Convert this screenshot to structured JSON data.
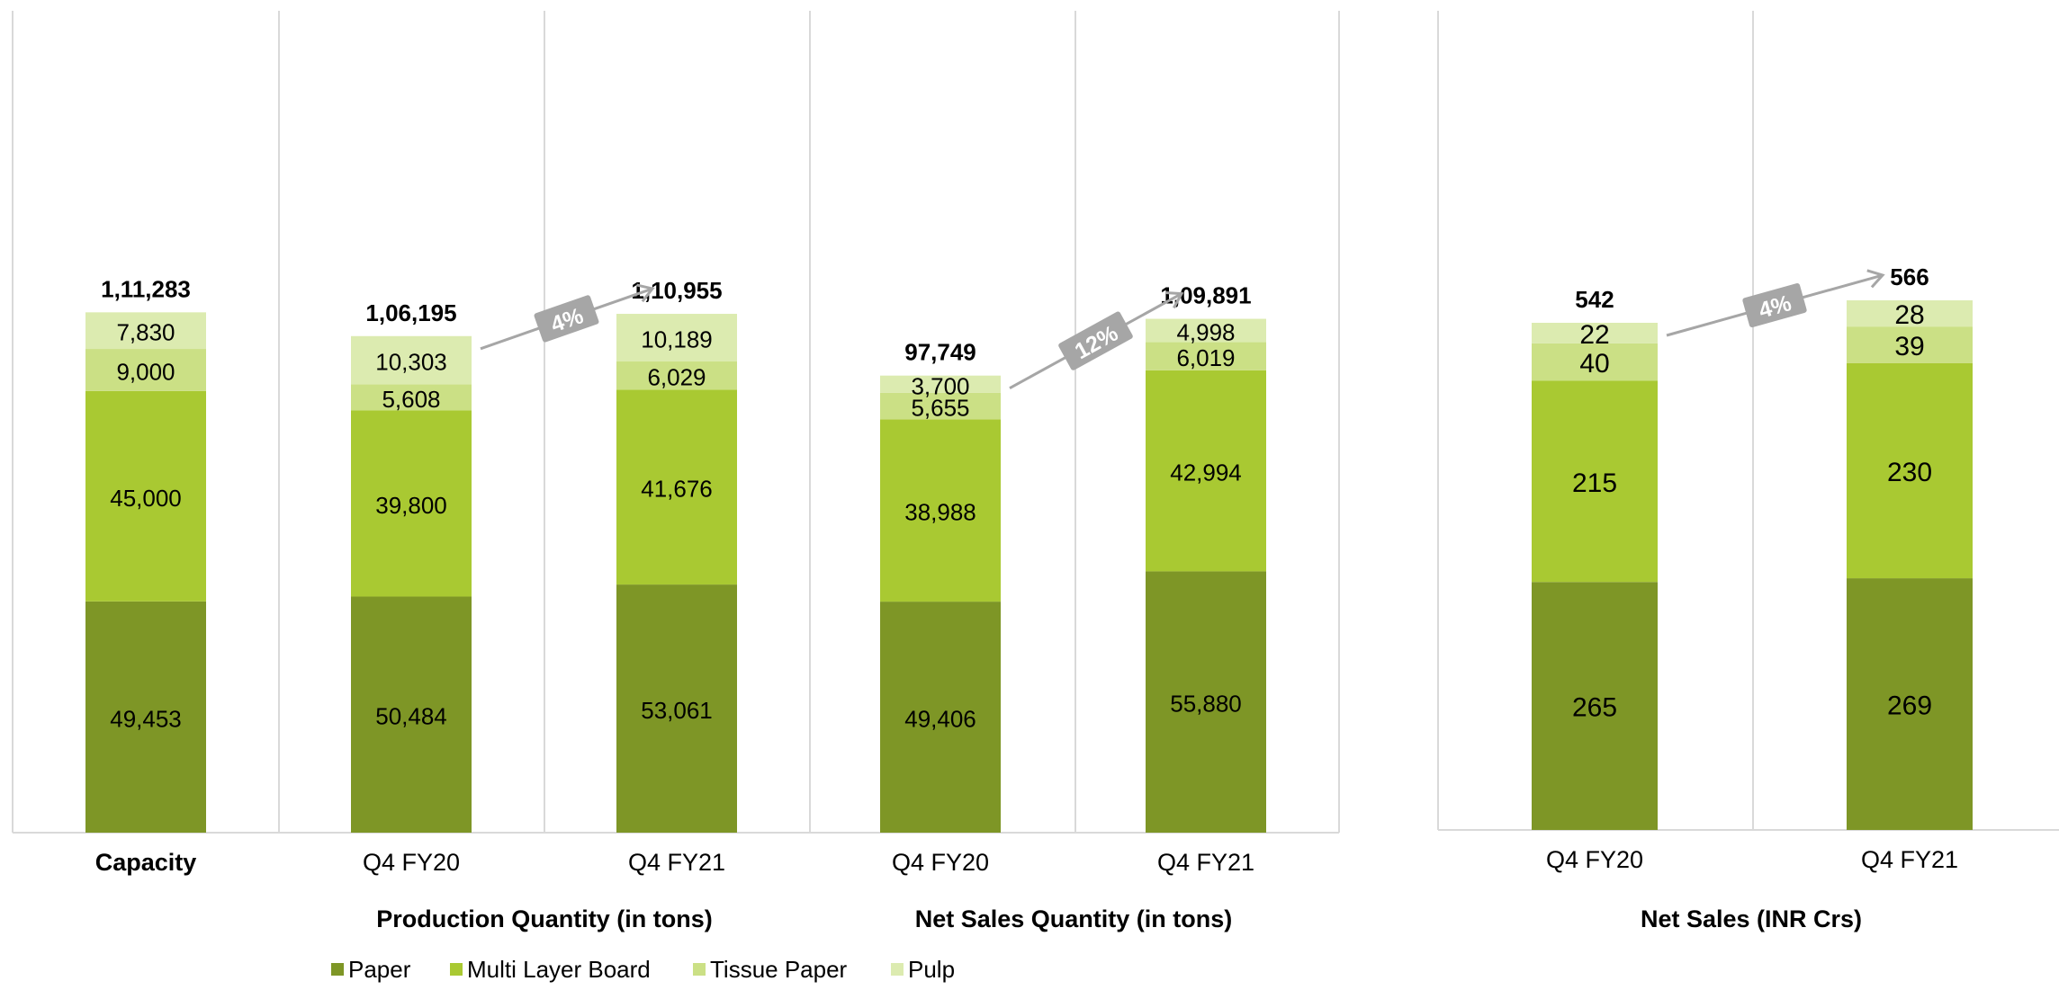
{
  "colors": {
    "paper": "#7e9626",
    "multi_layer_board": "#a9c932",
    "tissue_paper": "#cbe085",
    "pulp": "#dcebb0",
    "growth_badge": "#a6a6a6",
    "growth_arrow": "#a6a6a6",
    "separator": "#d9d9d9"
  },
  "legend": {
    "items": [
      {
        "label": "Paper",
        "color": "#7e9626"
      },
      {
        "label": "Multi Layer Board",
        "color": "#a9c932"
      },
      {
        "label": "Tissue Paper",
        "color": "#cbe085"
      },
      {
        "label": "Pulp",
        "color": "#dcebb0"
      }
    ]
  },
  "chart_data": [
    {
      "type": "bar",
      "stacked": true,
      "title": "Production Quantity (in tons)",
      "categories": [
        "Capacity",
        "Q4 FY20",
        "Q4 FY21"
      ],
      "series": [
        {
          "name": "Paper",
          "values": [
            49453,
            50484,
            53061
          ],
          "labels": [
            "49,453",
            "50,484",
            "53,061"
          ]
        },
        {
          "name": "Multi Layer Board",
          "values": [
            45000,
            39800,
            41676
          ],
          "labels": [
            "45,000",
            "39,800",
            "41,676"
          ]
        },
        {
          "name": "Tissue Paper",
          "values": [
            9000,
            5608,
            6029
          ],
          "labels": [
            "9,000",
            "5,608",
            "6,029"
          ]
        },
        {
          "name": "Pulp",
          "values": [
            7830,
            10303,
            10189
          ],
          "labels": [
            "7,830",
            "10,303",
            "10,189"
          ]
        }
      ],
      "totals": [
        111283,
        106195,
        110955
      ],
      "total_labels": [
        "1,11,283",
        "1,06,195",
        "1,10,955"
      ],
      "growth": {
        "label": "4%",
        "from": "Q4 FY20",
        "to": "Q4 FY21"
      }
    },
    {
      "type": "bar",
      "stacked": true,
      "title": "Net Sales Quantity (in tons)",
      "categories": [
        "Q4 FY20",
        "Q4 FY21"
      ],
      "series": [
        {
          "name": "Paper",
          "values": [
            49406,
            55880
          ],
          "labels": [
            "49,406",
            "55,880"
          ]
        },
        {
          "name": "Multi Layer Board",
          "values": [
            38988,
            42994
          ],
          "labels": [
            "38,988",
            "42,994"
          ]
        },
        {
          "name": "Tissue Paper",
          "values": [
            5655,
            6019
          ],
          "labels": [
            "5,655",
            "6,019"
          ]
        },
        {
          "name": "Pulp",
          "values": [
            3700,
            4998
          ],
          "labels": [
            "3,700",
            "4,998"
          ]
        }
      ],
      "totals": [
        97749,
        109891
      ],
      "total_labels": [
        "97,749",
        "1,09,891"
      ],
      "growth": {
        "label": "12%",
        "from": "Q4 FY20",
        "to": "Q4 FY21"
      }
    },
    {
      "type": "bar",
      "stacked": true,
      "title": "Net Sales (INR Crs)",
      "categories": [
        "Q4 FY20",
        "Q4 FY21"
      ],
      "series": [
        {
          "name": "Paper",
          "values": [
            265,
            269
          ],
          "labels": [
            "265",
            "269"
          ]
        },
        {
          "name": "Multi Layer Board",
          "values": [
            215,
            230
          ],
          "labels": [
            "215",
            "230"
          ]
        },
        {
          "name": "Tissue Paper",
          "values": [
            40,
            39
          ],
          "labels": [
            "40",
            "39"
          ]
        },
        {
          "name": "Pulp",
          "values": [
            22,
            28
          ],
          "labels": [
            "22",
            "28"
          ]
        }
      ],
      "totals": [
        542,
        566
      ],
      "total_labels": [
        "542",
        "566"
      ],
      "growth": {
        "label": "4%",
        "from": "Q4 FY20",
        "to": "Q4 FY21"
      }
    }
  ]
}
